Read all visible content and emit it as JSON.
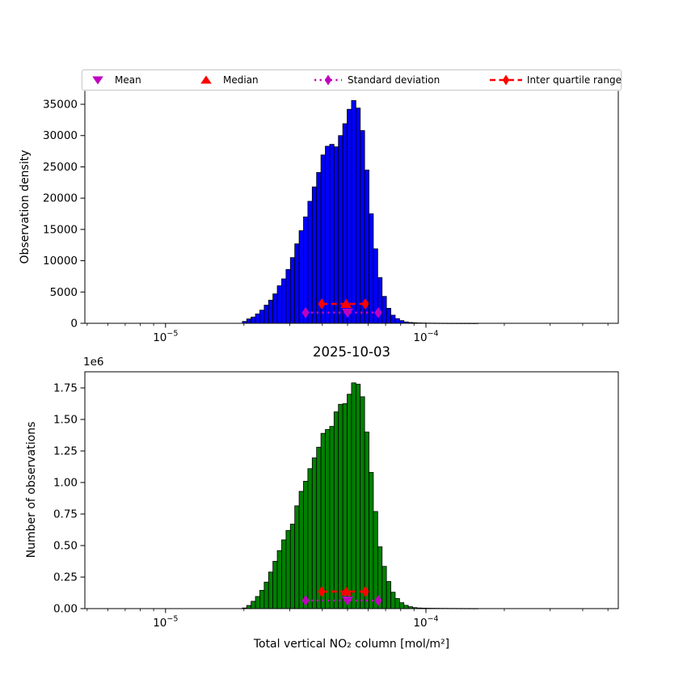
{
  "figure": {
    "background": "#ffffff"
  },
  "legend": {
    "items": [
      {
        "label": "Mean",
        "marker": "triangle-down",
        "color": "#bf00bf",
        "linestyle": "none"
      },
      {
        "label": "Median",
        "marker": "triangle-up",
        "color": "#ff0000",
        "linestyle": "none"
      },
      {
        "label": "Standard deviation",
        "marker": "thin-diamond",
        "color": "#bf00bf",
        "linestyle": "dotted"
      },
      {
        "label": "Inter quartile range",
        "marker": "thin-diamond",
        "color": "#ff0000",
        "linestyle": "dashed"
      }
    ]
  },
  "chart_data": [
    {
      "type": "bar",
      "title": "",
      "xlabel": "",
      "ylabel": "Observation density",
      "x_scale": "log",
      "xlim": [
        4.9e-06,
        0.000548
      ],
      "ylim": [
        0,
        37200
      ],
      "grid": false,
      "bar_color": "#0000ff",
      "bar_edge_color": "#000000",
      "yticks": {
        "values": [
          0,
          5000,
          10000,
          15000,
          20000,
          25000,
          30000,
          35000
        ],
        "labels": [
          "0",
          "5000",
          "10000",
          "15000",
          "20000",
          "25000",
          "30000",
          "35000"
        ]
      },
      "x_major_ticks": [
        {
          "value": 1e-05,
          "base": "10",
          "exp": "−5"
        },
        {
          "value": 0.0001,
          "base": "10",
          "exp": "−4"
        }
      ],
      "x_minor_tick_values": [
        5e-06,
        6e-06,
        7e-06,
        8e-06,
        9e-06,
        2e-05,
        3e-05,
        4e-05,
        5e-05,
        6e-05,
        7e-05,
        8e-05,
        9e-05,
        0.0002,
        0.0003,
        0.0004,
        0.0005
      ],
      "bins": {
        "log10_start": -4.705,
        "log10_width": 0.01677,
        "n": 54
      },
      "counts": [
        300,
        700,
        1000,
        1500,
        2100,
        2900,
        3700,
        4700,
        6000,
        7100,
        8600,
        10500,
        12700,
        14800,
        17000,
        19500,
        21800,
        24100,
        26900,
        28300,
        28600,
        28200,
        30000,
        31900,
        34200,
        35600,
        34400,
        30800,
        24500,
        17500,
        11900,
        7300,
        4300,
        2400,
        1300,
        750,
        430,
        220,
        130,
        90,
        65,
        50,
        40,
        30,
        25,
        20,
        15,
        12,
        10,
        8,
        6,
        5,
        4,
        3
      ],
      "stats": {
        "mean": 5e-05,
        "median": 4.94e-05,
        "q1": 3.98e-05,
        "q3": 5.85e-05,
        "std_low": 3.45e-05,
        "std_high": 6.56e-05,
        "iqr_line_y": 3100,
        "std_line_y": 1700,
        "mean_color": "#bf00bf",
        "median_color": "#ff0000",
        "std_color": "#bf00bf",
        "iqr_color": "#ff0000"
      }
    },
    {
      "type": "bar",
      "title": "2025-10-03",
      "xlabel": "Total vertical NO₂ column [mol/m²]",
      "ylabel": "Number of observations",
      "y_offset_label": "1e6",
      "x_scale": "log",
      "xlim": [
        4.9e-06,
        0.000548
      ],
      "ylim": [
        0,
        1878000
      ],
      "grid": false,
      "bar_color": "#008000",
      "bar_edge_color": "#000000",
      "yticks": {
        "values": [
          0,
          250000,
          500000,
          750000,
          1000000,
          1250000,
          1500000,
          1750000
        ],
        "labels": [
          "0.00",
          "0.25",
          "0.50",
          "0.75",
          "1.00",
          "1.25",
          "1.50",
          "1.75"
        ]
      },
      "x_major_ticks": [
        {
          "value": 1e-05,
          "base": "10",
          "exp": "−5"
        },
        {
          "value": 0.0001,
          "base": "10",
          "exp": "−4"
        }
      ],
      "x_minor_tick_values": [
        5e-06,
        6e-06,
        7e-06,
        8e-06,
        9e-06,
        2e-05,
        3e-05,
        4e-05,
        5e-05,
        6e-05,
        7e-05,
        8e-05,
        9e-05,
        0.0002,
        0.0003,
        0.0004,
        0.0005
      ],
      "bins": {
        "log10_start": -4.705,
        "log10_width": 0.01677,
        "n": 54
      },
      "counts": [
        5000,
        25000,
        58000,
        96000,
        145000,
        210000,
        290000,
        375000,
        460000,
        545000,
        620000,
        670000,
        815000,
        930000,
        1010000,
        1110000,
        1195000,
        1280000,
        1390000,
        1420000,
        1445000,
        1560000,
        1620000,
        1625000,
        1700000,
        1790000,
        1780000,
        1680000,
        1400000,
        1080000,
        770000,
        490000,
        335000,
        215000,
        130000,
        80000,
        47000,
        26000,
        15000,
        8000,
        5000,
        4000,
        3200,
        2800,
        2500,
        2200,
        2000,
        1800,
        1600,
        1400,
        1200,
        1000,
        900,
        800
      ],
      "stats": {
        "mean": 5e-05,
        "median": 4.94e-05,
        "q1": 3.98e-05,
        "q3": 5.85e-05,
        "std_low": 3.45e-05,
        "std_high": 6.56e-05,
        "iqr_line_y": 135000,
        "std_line_y": 64000,
        "mean_color": "#bf00bf",
        "median_color": "#ff0000",
        "std_color": "#bf00bf",
        "iqr_color": "#ff0000"
      }
    }
  ]
}
